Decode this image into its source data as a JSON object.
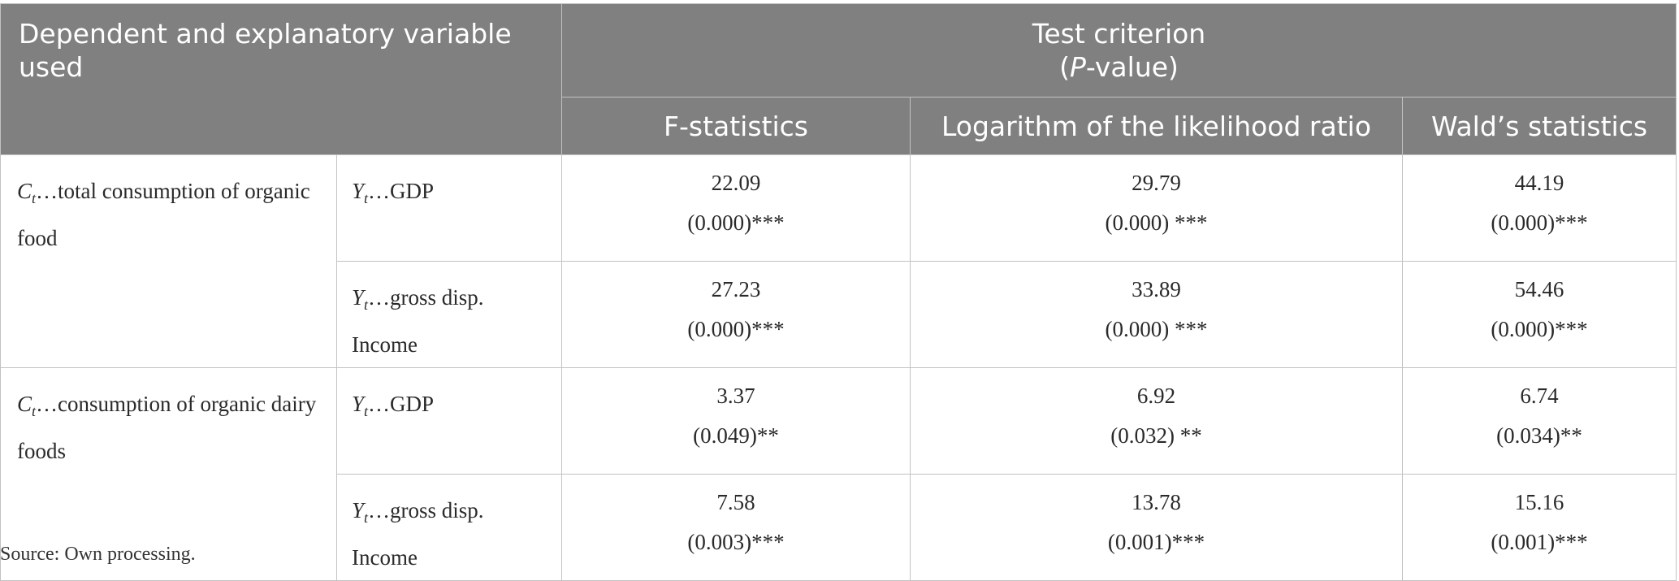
{
  "header": {
    "var_col": "Dependent and explanatory variable used",
    "criterion_line1": "Test criterion",
    "criterion_pvalue_italic": "P",
    "criterion_pvalue_rest": "-value)",
    "criterion_open_paren": "(",
    "sub_cols": [
      "F-statistics",
      "Logarithm of the likelihood ratio",
      "Wald’s statistics"
    ]
  },
  "groups": [
    {
      "dep_symbol": "C",
      "dep_subscript": "t",
      "dep_text": "…total consumption of organic food",
      "rows": [
        {
          "exp_symbol": "Y",
          "exp_subscript": "t",
          "exp_text": "…GDP",
          "cells": [
            {
              "value": "22.09",
              "pvalue": "(0.000)***"
            },
            {
              "value": "29.79",
              "pvalue": "(0.000) ***"
            },
            {
              "value": "44.19",
              "pvalue": "(0.000)***"
            }
          ]
        },
        {
          "exp_symbol": "Y",
          "exp_subscript": "t",
          "exp_text": "…gross disp.",
          "exp_text2": "Income",
          "cells": [
            {
              "value": "27.23",
              "pvalue": "(0.000)***"
            },
            {
              "value": "33.89",
              "pvalue": "(0.000) ***"
            },
            {
              "value": "54.46",
              "pvalue": "(0.000)***"
            }
          ]
        }
      ]
    },
    {
      "dep_symbol": "C",
      "dep_subscript": "t",
      "dep_text": "…consumption of organic dairy foods",
      "rows": [
        {
          "exp_symbol": "Y",
          "exp_subscript": "t",
          "exp_text": "…GDP",
          "cells": [
            {
              "value": "3.37",
              "pvalue": "(0.049)**"
            },
            {
              "value": "6.92",
              "pvalue": "(0.032) **"
            },
            {
              "value": "6.74",
              "pvalue": "(0.034)**"
            }
          ]
        },
        {
          "exp_symbol": "Y",
          "exp_subscript": "t",
          "exp_text": "…gross disp.",
          "exp_text2": "Income",
          "cells": [
            {
              "value": "7.58",
              "pvalue": "(0.003)***"
            },
            {
              "value": "13.78",
              "pvalue": "(0.001)***"
            },
            {
              "value": "15.16",
              "pvalue": "(0.001)***"
            }
          ]
        }
      ]
    }
  ],
  "source": "Source: Own processing."
}
